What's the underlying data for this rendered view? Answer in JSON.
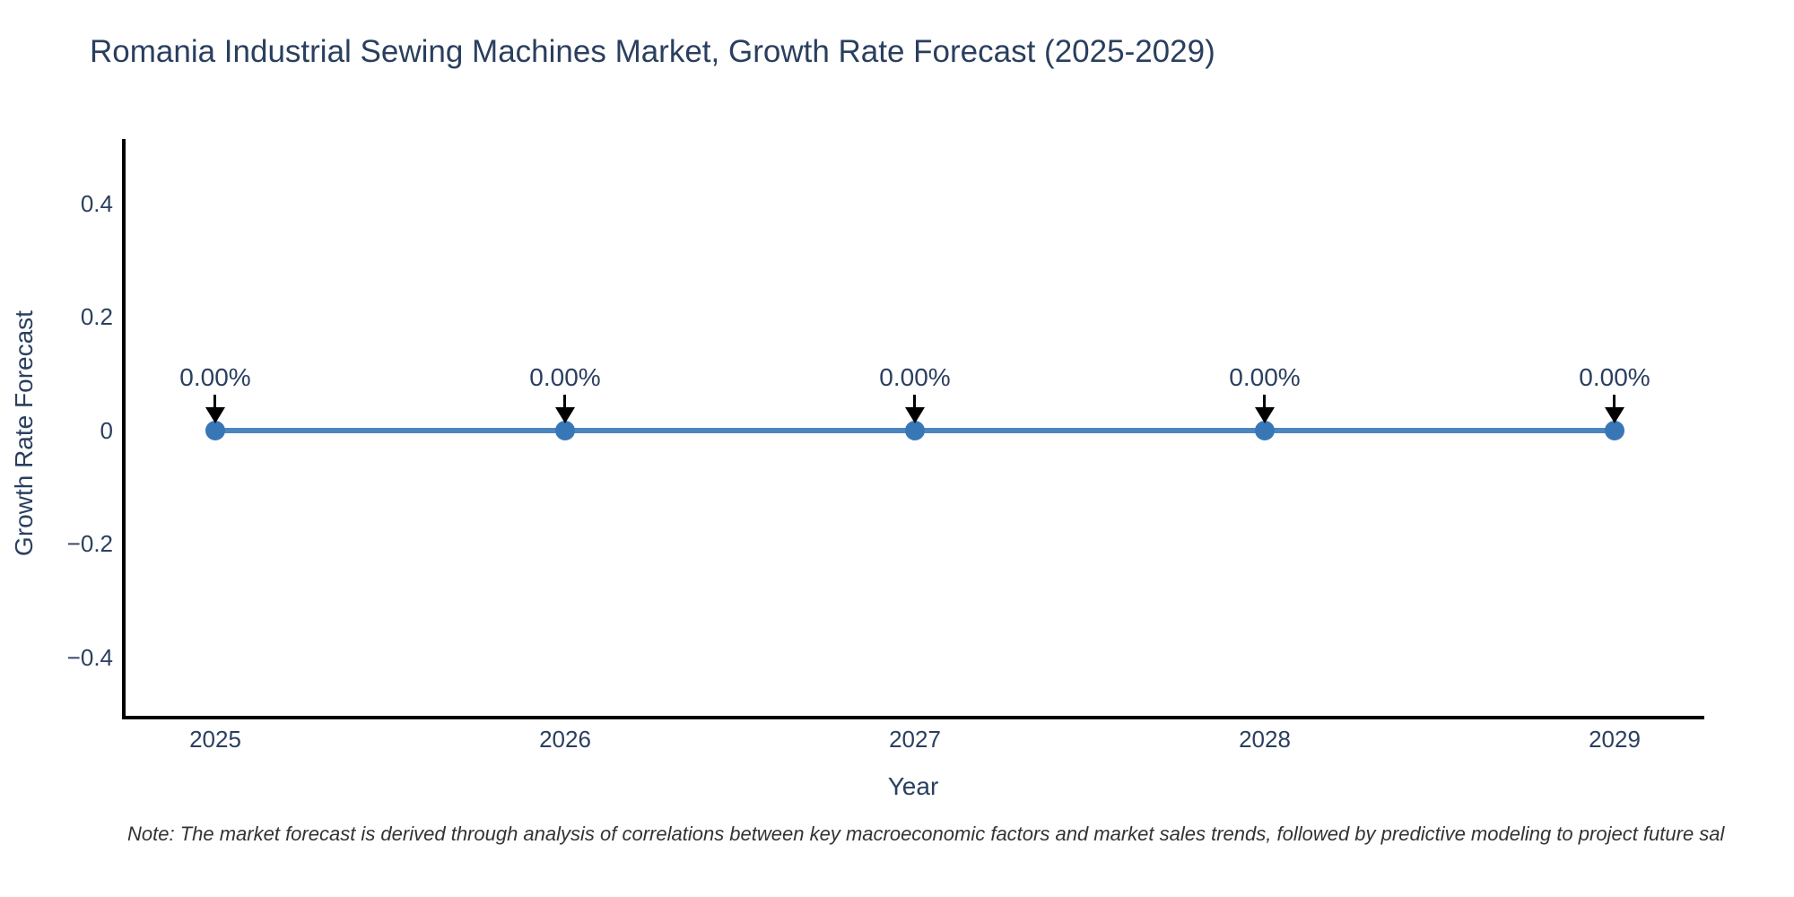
{
  "title": "Romania Industrial Sewing Machines Market, Growth Rate Forecast (2025-2029)",
  "note": "Note: The market forecast is derived through analysis of correlations between key macroeconomic factors and market sales trends, followed by predictive modeling to project future sal",
  "axes": {
    "x_label": "Year",
    "y_label": "Growth Rate Forecast",
    "x_ticks": [
      "2025",
      "2026",
      "2027",
      "2028",
      "2029"
    ],
    "y_ticks": [
      "0.4",
      "0.2",
      "0",
      "−0.2",
      "−0.4"
    ]
  },
  "annotations": [
    "0.00%",
    "0.00%",
    "0.00%",
    "0.00%",
    "0.00%"
  ],
  "chart_data": {
    "type": "line",
    "title": "Romania Industrial Sewing Machines Market, Growth Rate Forecast (2025-2029)",
    "xlabel": "Year",
    "ylabel": "Growth Rate Forecast",
    "x": [
      2025,
      2026,
      2027,
      2028,
      2029
    ],
    "series": [
      {
        "name": "Growth Rate Forecast",
        "values": [
          0,
          0,
          0,
          0,
          0
        ]
      }
    ],
    "data_labels": [
      "0.00%",
      "0.00%",
      "0.00%",
      "0.00%",
      "0.00%"
    ],
    "ylim": [
      -0.52,
      0.52
    ],
    "yticks": [
      0.4,
      0.2,
      0,
      -0.2,
      -0.4
    ],
    "grid": false,
    "legend_position": "none",
    "marker_style": "circle",
    "annotation_arrows": true,
    "colors": {
      "line": "#4d86bf",
      "marker": "#3877b6",
      "axis": "#000000",
      "text": "#2a3f5f",
      "arrow": "#000000",
      "background": "#ffffff"
    }
  }
}
